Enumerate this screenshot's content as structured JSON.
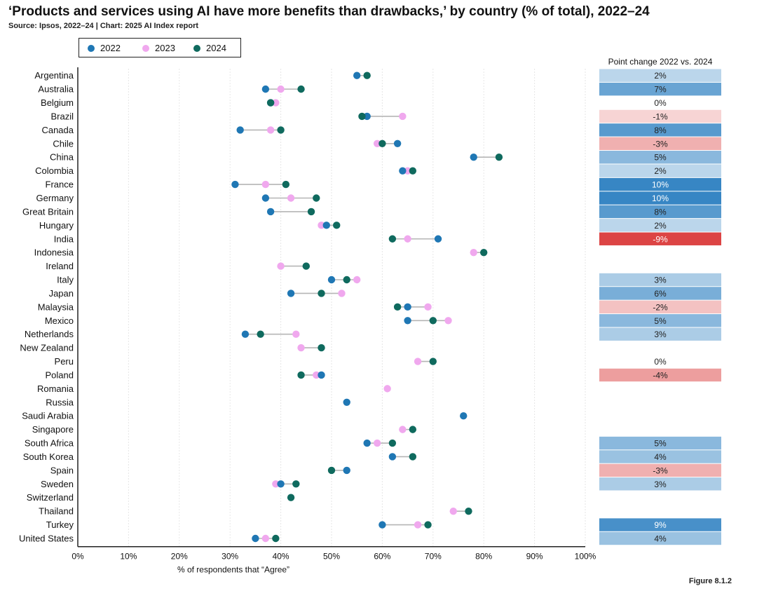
{
  "header": {
    "title": "‘Products and services using AI have more benefits than drawbacks,’ by country (% of total), 2022–24",
    "subtitle": "Source: Ipsos, 2022–24 | Chart: 2025 AI Index report",
    "figure_label": "Figure 8.1.2"
  },
  "colors": {
    "y2022": "#1f77b4",
    "y2023": "#f0a8ee",
    "y2024": "#0f6a5e",
    "connector": "#b5b5b5",
    "grid": "#e6e6e6",
    "axis": "#222222"
  },
  "chart_data": {
    "type": "scatter",
    "subtype": "dumbbell",
    "title": "‘Products and services using AI have more benefits than drawbacks,’ by country (% of total), 2022–24",
    "xlabel": "% of respondents that “Agree”",
    "ylabel": "",
    "xlim": [
      0,
      100
    ],
    "x_ticks": [
      "0%",
      "10%",
      "20%",
      "30%",
      "40%",
      "50%",
      "60%",
      "70%",
      "80%",
      "90%",
      "100%"
    ],
    "grid": "vertical",
    "legend_placement": "top-left",
    "series_names": [
      "2022",
      "2023",
      "2024"
    ],
    "change_column_title": "Point change 2022 vs. 2024",
    "countries": [
      {
        "name": "Argentina",
        "v2022": 55,
        "v2023": null,
        "v2024": 57,
        "change": "2%",
        "change_value": 2
      },
      {
        "name": "Australia",
        "v2022": 37,
        "v2023": 40,
        "v2024": 44,
        "change": "7%",
        "change_value": 7
      },
      {
        "name": "Belgium",
        "v2022": 38,
        "v2023": 39,
        "v2024": 38,
        "change": "0%",
        "change_value": 0
      },
      {
        "name": "Brazil",
        "v2022": 57,
        "v2023": 64,
        "v2024": 56,
        "change": "-1%",
        "change_value": -1
      },
      {
        "name": "Canada",
        "v2022": 32,
        "v2023": 38,
        "v2024": 40,
        "change": "8%",
        "change_value": 8
      },
      {
        "name": "Chile",
        "v2022": 63,
        "v2023": 59,
        "v2024": 60,
        "change": "-3%",
        "change_value": -3
      },
      {
        "name": "China",
        "v2022": 78,
        "v2023": null,
        "v2024": 83,
        "change": "5%",
        "change_value": 5
      },
      {
        "name": "Colombia",
        "v2022": 64,
        "v2023": 65,
        "v2024": 66,
        "change": "2%",
        "change_value": 2
      },
      {
        "name": "France",
        "v2022": 31,
        "v2023": 37,
        "v2024": 41,
        "change": "10%",
        "change_value": 10
      },
      {
        "name": "Germany",
        "v2022": 37,
        "v2023": 42,
        "v2024": 47,
        "change": "10%",
        "change_value": 10
      },
      {
        "name": "Great Britain",
        "v2022": 38,
        "v2023": null,
        "v2024": 46,
        "change": "8%",
        "change_value": 8
      },
      {
        "name": "Hungary",
        "v2022": 49,
        "v2023": 48,
        "v2024": 51,
        "change": "2%",
        "change_value": 2
      },
      {
        "name": "India",
        "v2022": 71,
        "v2023": 65,
        "v2024": 62,
        "change": "-9%",
        "change_value": -9
      },
      {
        "name": "Indonesia",
        "v2022": null,
        "v2023": 78,
        "v2024": 80,
        "change": "",
        "change_value": null
      },
      {
        "name": "Ireland",
        "v2022": null,
        "v2023": 40,
        "v2024": 45,
        "change": "",
        "change_value": null
      },
      {
        "name": "Italy",
        "v2022": 50,
        "v2023": 55,
        "v2024": 53,
        "change": "3%",
        "change_value": 3
      },
      {
        "name": "Japan",
        "v2022": 42,
        "v2023": 52,
        "v2024": 48,
        "change": "6%",
        "change_value": 6
      },
      {
        "name": "Malaysia",
        "v2022": 65,
        "v2023": 69,
        "v2024": 63,
        "change": "-2%",
        "change_value": -2
      },
      {
        "name": "Mexico",
        "v2022": 65,
        "v2023": 73,
        "v2024": 70,
        "change": "5%",
        "change_value": 5
      },
      {
        "name": "Netherlands",
        "v2022": 33,
        "v2023": 43,
        "v2024": 36,
        "change": "3%",
        "change_value": 3
      },
      {
        "name": "New Zealand",
        "v2022": null,
        "v2023": 44,
        "v2024": 48,
        "change": "",
        "change_value": null
      },
      {
        "name": "Peru",
        "v2022": null,
        "v2023": 67,
        "v2024": 70,
        "change": "0%",
        "change_value": 0
      },
      {
        "name": "Poland",
        "v2022": 48,
        "v2023": 47,
        "v2024": 44,
        "change": "-4%",
        "change_value": -4
      },
      {
        "name": "Romania",
        "v2022": null,
        "v2023": 61,
        "v2024": null,
        "change": "",
        "change_value": null
      },
      {
        "name": "Russia",
        "v2022": 53,
        "v2023": null,
        "v2024": null,
        "change": "",
        "change_value": null
      },
      {
        "name": "Saudi Arabia",
        "v2022": 76,
        "v2023": null,
        "v2024": null,
        "change": "",
        "change_value": null
      },
      {
        "name": "Singapore",
        "v2022": null,
        "v2023": 64,
        "v2024": 66,
        "change": "",
        "change_value": null
      },
      {
        "name": "South Africa",
        "v2022": 57,
        "v2023": 59,
        "v2024": 62,
        "change": "5%",
        "change_value": 5
      },
      {
        "name": "South Korea",
        "v2022": 62,
        "v2023": null,
        "v2024": 66,
        "change": "4%",
        "change_value": 4
      },
      {
        "name": "Spain",
        "v2022": 53,
        "v2023": null,
        "v2024": 50,
        "change": "-3%",
        "change_value": -3
      },
      {
        "name": "Sweden",
        "v2022": 40,
        "v2023": 39,
        "v2024": 43,
        "change": "3%",
        "change_value": 3
      },
      {
        "name": "Switzerland",
        "v2022": null,
        "v2023": null,
        "v2024": 42,
        "change": "",
        "change_value": null
      },
      {
        "name": "Thailand",
        "v2022": null,
        "v2023": 74,
        "v2024": 77,
        "change": "",
        "change_value": null
      },
      {
        "name": "Turkey",
        "v2022": 60,
        "v2023": 67,
        "v2024": 69,
        "change": "9%",
        "change_value": 9
      },
      {
        "name": "United States",
        "v2022": 35,
        "v2023": 37,
        "v2024": 39,
        "change": "4%",
        "change_value": 4
      }
    ]
  }
}
